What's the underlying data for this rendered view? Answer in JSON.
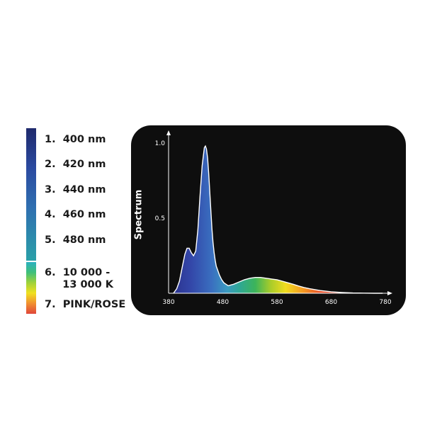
{
  "legend": {
    "items": [
      {
        "label": "1.  400 nm"
      },
      {
        "label": "2.  420 nm"
      },
      {
        "label": "3.  440 nm"
      },
      {
        "label": "4.  460 nm"
      },
      {
        "label": "5.  480 nm"
      },
      {
        "label": "6.  10 000 -\n     13 000 K"
      },
      {
        "label": "7.  PINK/ROSE"
      }
    ]
  },
  "chart_data": {
    "type": "area",
    "xlabel": "",
    "ylabel": "Spectrum",
    "xlim": [
      380,
      780
    ],
    "ylim": [
      0,
      1.0
    ],
    "x_ticks": [
      "380",
      "480",
      "580",
      "680",
      "780"
    ],
    "y_ticks": [
      "0.5",
      "1.0"
    ],
    "grid": false,
    "legend": "left, outside",
    "series": [
      {
        "x": [
          389,
          395,
          400,
          405,
          410,
          414,
          418,
          422,
          426,
          430,
          434,
          438,
          442,
          446,
          448,
          450,
          452,
          454,
          456,
          458,
          460,
          462,
          464,
          466,
          468,
          470,
          474,
          478,
          482,
          486,
          490,
          495,
          500,
          510,
          520,
          530,
          540,
          550,
          560,
          570,
          580,
          590,
          600,
          610,
          620,
          630,
          640,
          660,
          680,
          700,
          720,
          740,
          760,
          775
        ],
        "y": [
          0.0,
          0.03,
          0.08,
          0.17,
          0.26,
          0.3,
          0.3,
          0.27,
          0.25,
          0.28,
          0.42,
          0.65,
          0.85,
          0.97,
          0.98,
          0.96,
          0.9,
          0.8,
          0.68,
          0.55,
          0.43,
          0.34,
          0.27,
          0.22,
          0.18,
          0.16,
          0.12,
          0.09,
          0.07,
          0.06,
          0.05,
          0.055,
          0.06,
          0.075,
          0.09,
          0.1,
          0.105,
          0.105,
          0.1,
          0.095,
          0.09,
          0.08,
          0.07,
          0.06,
          0.048,
          0.038,
          0.03,
          0.018,
          0.01,
          0.005,
          0.002,
          0.001,
          0.0,
          0.0
        ]
      }
    ]
  },
  "colors": {
    "panel_bg": "#0e0e0e",
    "axis": "#ffffff",
    "text_dark": "#1a1a1a"
  }
}
